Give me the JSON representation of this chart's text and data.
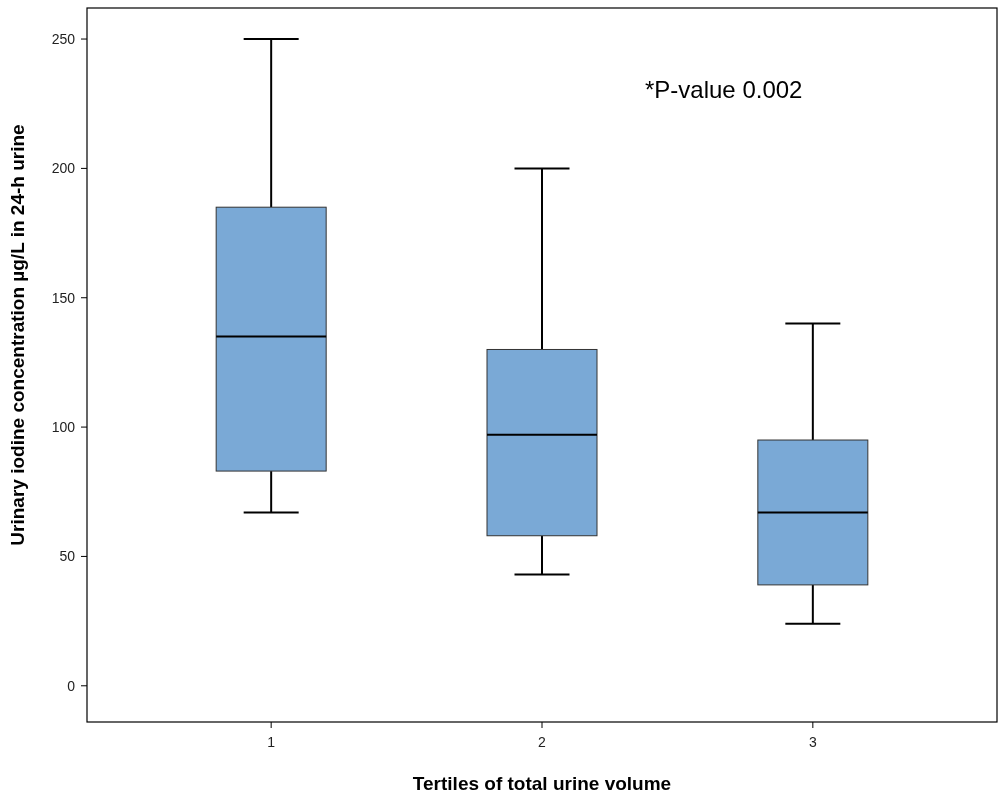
{
  "chart_data": {
    "type": "box",
    "xlabel": "Tertiles of total urine volume",
    "ylabel": "Urinary iodine concentration µg/L in 24-h urine",
    "categories": [
      "1",
      "2",
      "3"
    ],
    "boxes": [
      {
        "low": 67,
        "q1": 83,
        "median": 135,
        "q3": 185,
        "high": 250
      },
      {
        "low": 43,
        "q1": 58,
        "median": 97,
        "q3": 130,
        "high": 200
      },
      {
        "low": 24,
        "q1": 39,
        "median": 67,
        "q3": 95,
        "high": 140
      }
    ],
    "color": "#7aa9d6",
    "ylim": [
      -14,
      262
    ],
    "yticks": [
      0,
      50,
      100,
      150,
      200,
      250
    ],
    "grid": false,
    "annotations": [
      "*P-value 0.002"
    ]
  }
}
